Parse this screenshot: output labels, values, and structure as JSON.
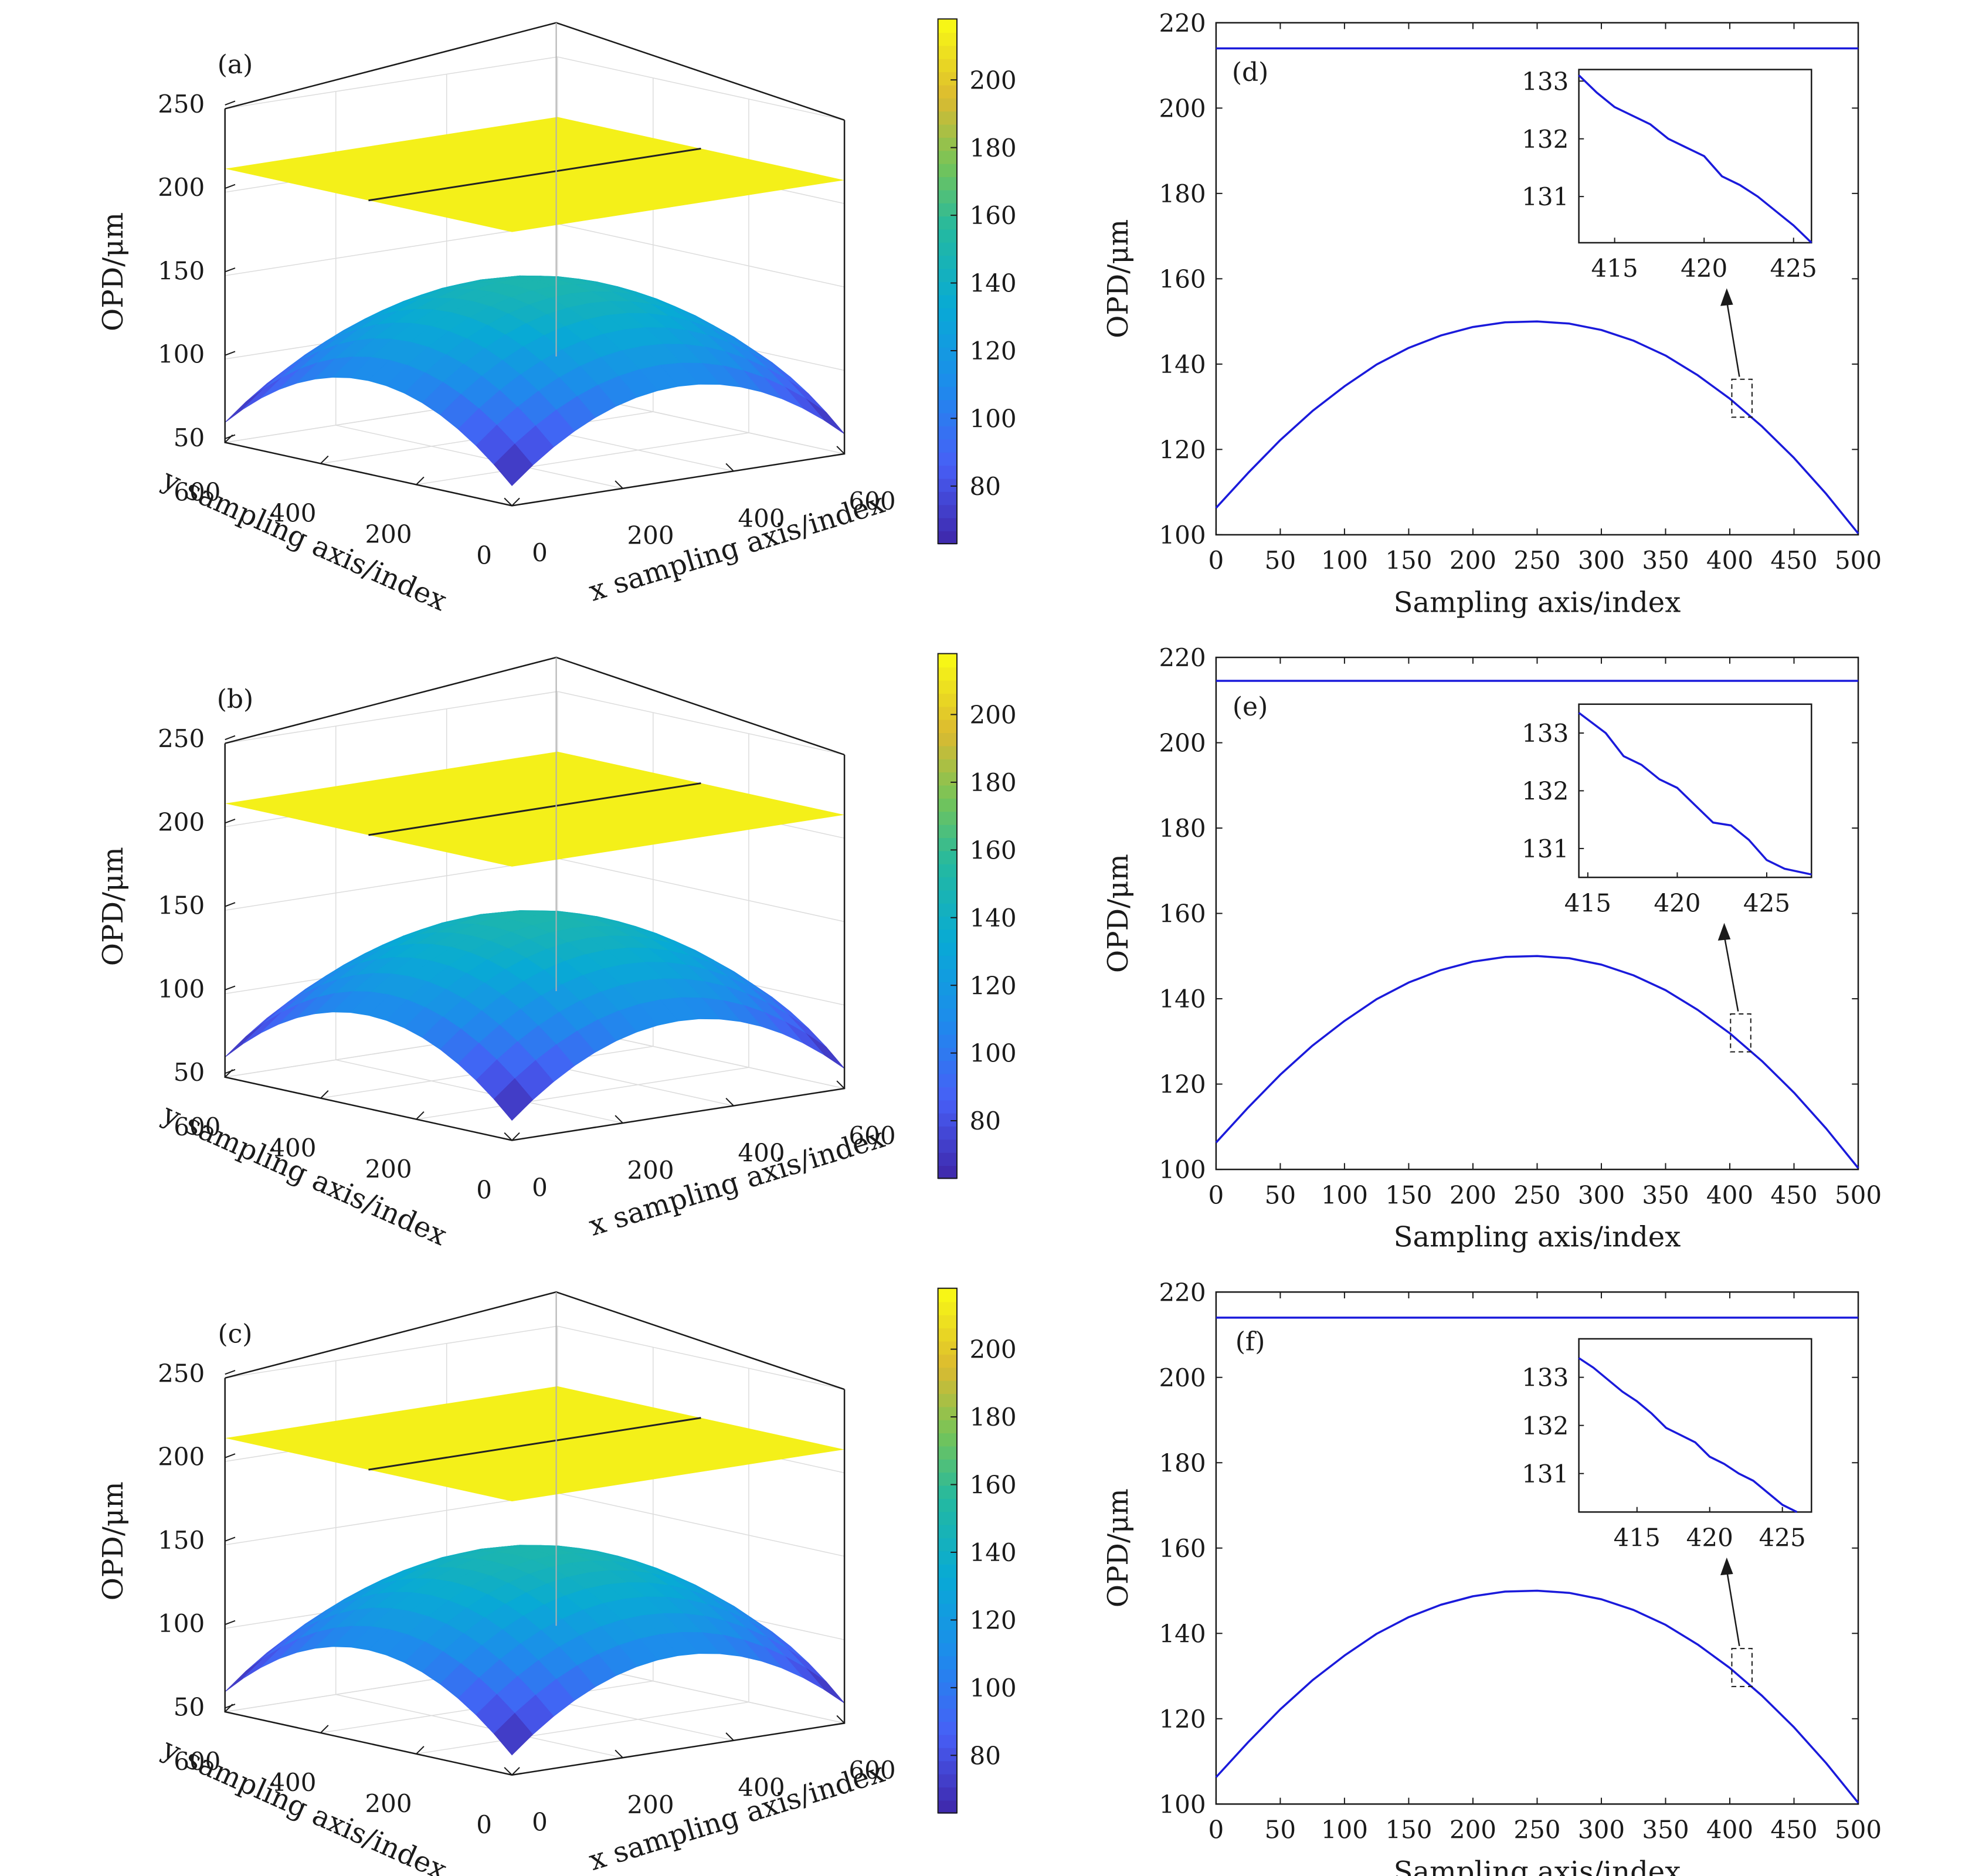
{
  "chart_data": [
    {
      "panel": "(a)",
      "type": "surface3d",
      "zlabel": "OPD/μm",
      "xlabel": "x sampling axis/index",
      "ylabel": "y sampling axis/index",
      "zticks": [
        50,
        100,
        150,
        200,
        250
      ],
      "xticks": [
        0,
        200,
        400,
        600
      ],
      "yticks": [
        0,
        200,
        400,
        600
      ],
      "zlim": [
        50,
        250
      ],
      "xlim": [
        0,
        600
      ],
      "ylim": [
        0,
        600
      ],
      "surfaces": [
        {
          "shape": "plane",
          "z": 214
        },
        {
          "shape": "dome",
          "z_center": 150,
          "z_corner": 62
        }
      ],
      "colorbar": {
        "ticks": [
          80,
          100,
          120,
          140,
          160,
          180,
          200
        ],
        "range": [
          63,
          218
        ],
        "colormap": "parula"
      },
      "grid": true
    },
    {
      "panel": "(b)",
      "type": "surface3d",
      "zlabel": "OPD/μm",
      "xlabel": "x sampling axis/index",
      "ylabel": "y sampling axis/index",
      "zticks": [
        50,
        100,
        150,
        200,
        250
      ],
      "xticks": [
        0,
        200,
        400,
        600
      ],
      "yticks": [
        0,
        200,
        400,
        600
      ],
      "zlim": [
        50,
        250
      ],
      "xlim": [
        0,
        600
      ],
      "ylim": [
        0,
        600
      ],
      "surfaces": [
        {
          "shape": "plane",
          "z": 214
        },
        {
          "shape": "dome",
          "z_center": 150,
          "z_corner": 62
        }
      ],
      "colorbar": {
        "ticks": [
          80,
          100,
          120,
          140,
          160,
          180,
          200
        ],
        "range": [
          63,
          218
        ],
        "colormap": "parula"
      },
      "grid": true
    },
    {
      "panel": "(c)",
      "type": "surface3d",
      "zlabel": "OPD/μm",
      "xlabel": "x sampling axis/index",
      "ylabel": "y sampling axis/index",
      "zticks": [
        50,
        100,
        150,
        200,
        250
      ],
      "xticks": [
        0,
        200,
        400,
        600
      ],
      "yticks": [
        0,
        200,
        400,
        600
      ],
      "zlim": [
        50,
        250
      ],
      "xlim": [
        0,
        600
      ],
      "ylim": [
        0,
        600
      ],
      "surfaces": [
        {
          "shape": "plane",
          "z": 214
        },
        {
          "shape": "dome",
          "z_center": 150,
          "z_corner": 62
        }
      ],
      "colorbar": {
        "ticks": [
          80,
          100,
          120,
          140,
          160,
          180,
          200
        ],
        "range": [
          63,
          218
        ],
        "colormap": "parula"
      },
      "grid": true
    },
    {
      "panel": "(d)",
      "type": "line",
      "xlabel": "Sampling axis/index",
      "ylabel": "OPD/μm",
      "xlim": [
        0,
        500
      ],
      "ylim": [
        100,
        220
      ],
      "xticks": [
        0,
        50,
        100,
        150,
        200,
        250,
        300,
        350,
        400,
        450,
        500
      ],
      "yticks": [
        100,
        120,
        140,
        160,
        180,
        200,
        220
      ],
      "color": "#1a1adb",
      "series": [
        {
          "x": [
            0,
            500
          ],
          "y": [
            214,
            214
          ]
        },
        {
          "x": [
            0,
            25,
            50,
            75,
            100,
            125,
            150,
            175,
            200,
            225,
            250,
            275,
            300,
            325,
            350,
            375,
            400,
            425,
            450,
            475,
            500
          ],
          "y": [
            106.3,
            114.5,
            122.2,
            129.0,
            134.8,
            139.9,
            143.8,
            146.7,
            148.7,
            149.8,
            150.0,
            149.5,
            148.0,
            145.5,
            142.0,
            137.4,
            131.9,
            125.4,
            118.0,
            109.6,
            100.3
          ]
        }
      ],
      "inset": {
        "xlim": [
          413,
          426
        ],
        "ylim": [
          130.2,
          133.2
        ],
        "xticks": [
          415,
          420,
          425
        ],
        "yticks": [
          131,
          132,
          133
        ],
        "series": {
          "x": [
            413,
            414,
            415,
            416,
            417,
            418,
            419,
            420,
            421,
            422,
            423,
            424,
            425,
            426
          ],
          "y": [
            133.1,
            132.8,
            132.55,
            132.4,
            132.25,
            132.0,
            131.85,
            131.7,
            131.35,
            131.2,
            131.0,
            130.75,
            130.5,
            130.2
          ]
        }
      }
    },
    {
      "panel": "(e)",
      "type": "line",
      "xlabel": "Sampling axis/index",
      "ylabel": "OPD/μm",
      "xlim": [
        0,
        500
      ],
      "ylim": [
        100,
        220
      ],
      "xticks": [
        0,
        50,
        100,
        150,
        200,
        250,
        300,
        350,
        400,
        450,
        500
      ],
      "yticks": [
        100,
        120,
        140,
        160,
        180,
        200,
        220
      ],
      "color": "#1a1adb",
      "series": [
        {
          "x": [
            0,
            500
          ],
          "y": [
            214.5,
            214.5
          ]
        },
        {
          "x": [
            0,
            25,
            50,
            75,
            100,
            125,
            150,
            175,
            200,
            225,
            250,
            275,
            300,
            325,
            350,
            375,
            400,
            425,
            450,
            475,
            500
          ],
          "y": [
            106.3,
            114.5,
            122.2,
            129.0,
            134.8,
            139.9,
            143.8,
            146.7,
            148.7,
            149.8,
            150.0,
            149.5,
            148.0,
            145.5,
            142.0,
            137.4,
            131.9,
            125.4,
            118.0,
            109.6,
            100.3
          ]
        }
      ],
      "inset": {
        "xlim": [
          414.5,
          427.5
        ],
        "ylim": [
          130.5,
          133.5
        ],
        "xticks": [
          415,
          420,
          425
        ],
        "yticks": [
          131,
          132,
          133
        ],
        "series": {
          "x": [
            414.5,
            416,
            417,
            418,
            419,
            420,
            421,
            422,
            423,
            424,
            425,
            426,
            427.5
          ],
          "y": [
            133.35,
            133.0,
            132.6,
            132.45,
            132.2,
            132.05,
            131.75,
            131.45,
            131.4,
            131.15,
            130.8,
            130.65,
            130.55
          ]
        }
      }
    },
    {
      "panel": "(f)",
      "type": "line",
      "xlabel": "Sampling axis/index",
      "ylabel": "OPD/μm",
      "xlim": [
        0,
        500
      ],
      "ylim": [
        100,
        220
      ],
      "xticks": [
        0,
        50,
        100,
        150,
        200,
        250,
        300,
        350,
        400,
        450,
        500
      ],
      "yticks": [
        100,
        120,
        140,
        160,
        180,
        200,
        220
      ],
      "color": "#1a1adb",
      "series": [
        {
          "x": [
            0,
            500
          ],
          "y": [
            214,
            214
          ]
        },
        {
          "x": [
            0,
            25,
            50,
            75,
            100,
            125,
            150,
            175,
            200,
            225,
            250,
            275,
            300,
            325,
            350,
            375,
            400,
            425,
            450,
            475,
            500
          ],
          "y": [
            106.3,
            114.5,
            122.2,
            129.0,
            134.8,
            139.9,
            143.8,
            146.7,
            148.7,
            149.8,
            150.0,
            149.5,
            148.0,
            145.5,
            142.0,
            137.4,
            131.9,
            125.4,
            118.0,
            109.6,
            100.3
          ]
        }
      ],
      "inset": {
        "xlim": [
          411,
          427
        ],
        "ylim": [
          130.2,
          133.8
        ],
        "xticks": [
          415,
          420,
          425
        ],
        "yticks": [
          131,
          132,
          133
        ],
        "series": {
          "x": [
            411,
            412,
            413,
            414,
            415,
            416,
            417,
            418,
            419,
            420,
            421,
            422,
            423,
            424,
            425,
            426
          ],
          "y": [
            133.4,
            133.2,
            132.95,
            132.7,
            132.5,
            132.25,
            131.95,
            131.8,
            131.65,
            131.35,
            131.2,
            131.0,
            130.85,
            130.6,
            130.35,
            130.2
          ]
        }
      }
    }
  ]
}
